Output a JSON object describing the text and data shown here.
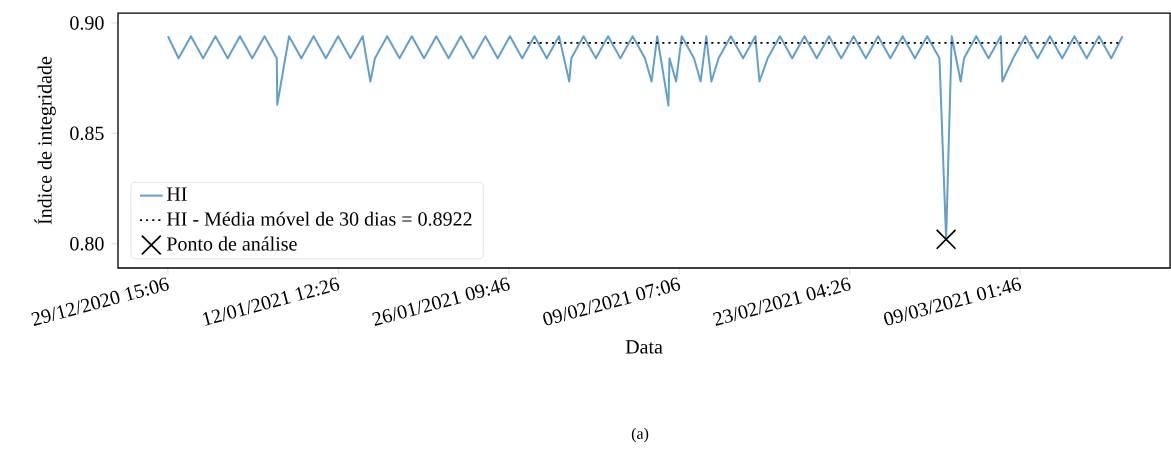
{
  "chart_data": {
    "type": "line",
    "xlabel": "Data",
    "ylabel": "Índice de integridade",
    "annotations": [
      "(a)"
    ],
    "xlim": [
      "2020-12-25T13:30",
      "2021-03-21T07:00"
    ],
    "xticks": [
      {
        "value": "2020-12-29T15:06",
        "label": "29/12/2020 15:06"
      },
      {
        "value": "2021-01-12T12:26",
        "label": "12/01/2021 12:26"
      },
      {
        "value": "2021-01-26T09:46",
        "label": "26/01/2021 09:46"
      },
      {
        "value": "2021-02-09T07:06",
        "label": "09/02/2021 07:06"
      },
      {
        "value": "2021-02-23T04:26",
        "label": "23/02/2021 04:26"
      },
      {
        "value": "2021-03-09T01:46",
        "label": "09/03/2021 01:46"
      }
    ],
    "ylim": [
      0.789,
      0.9045
    ],
    "yticks": [
      {
        "value": 0.8,
        "label": "0.80"
      },
      {
        "value": 0.85,
        "label": "0.85"
      },
      {
        "value": 0.9,
        "label": "0.90"
      }
    ],
    "legend": "bottom left",
    "grid": false,
    "series": [
      {
        "name": "HI",
        "color": "#62a0ca",
        "line_style": "solid",
        "x": [
          "2020-12-29T15:06",
          "2020-12-30T12:00",
          "2020-12-31T12:00",
          "2021-01-01T12:00",
          "2021-01-02T12:00",
          "2021-01-03T12:00",
          "2021-01-04T12:00",
          "2021-01-05T12:00",
          "2021-01-06T12:00",
          "2021-01-07T12:00",
          "2021-01-07T13:00",
          "2021-01-08T12:00",
          "2021-01-09T12:00",
          "2021-01-10T12:00",
          "2021-01-11T12:00",
          "2021-01-12T12:00",
          "2021-01-13T12:00",
          "2021-01-14T12:00",
          "2021-01-15T03:00",
          "2021-01-15T12:00",
          "2021-01-16T12:00",
          "2021-01-17T12:00",
          "2021-01-18T12:00",
          "2021-01-19T12:00",
          "2021-01-20T12:00",
          "2021-01-21T12:00",
          "2021-01-22T12:00",
          "2021-01-23T12:00",
          "2021-01-24T12:00",
          "2021-01-25T12:00",
          "2021-01-26T12:00",
          "2021-01-27T12:00",
          "2021-01-28T12:00",
          "2021-01-29T12:00",
          "2021-01-30T12:00",
          "2021-01-31T08:00",
          "2021-01-31T12:00",
          "2021-02-01T12:00",
          "2021-02-02T12:00",
          "2021-02-03T12:00",
          "2021-02-04T12:00",
          "2021-02-05T12:00",
          "2021-02-06T12:00",
          "2021-02-07T01:00",
          "2021-02-07T12:00",
          "2021-02-08T10:00",
          "2021-02-08T12:00",
          "2021-02-09T01:00",
          "2021-02-09T12:00",
          "2021-02-10T12:00",
          "2021-02-11T01:00",
          "2021-02-11T12:00",
          "2021-02-11T22:00",
          "2021-02-12T12:00",
          "2021-02-13T12:00",
          "2021-02-14T12:00",
          "2021-02-15T12:00",
          "2021-02-15T20:00",
          "2021-02-16T12:00",
          "2021-02-17T12:00",
          "2021-02-18T12:00",
          "2021-02-19T12:00",
          "2021-02-20T12:00",
          "2021-02-21T12:00",
          "2021-02-22T12:00",
          "2021-02-23T12:00",
          "2021-02-24T12:00",
          "2021-02-25T12:00",
          "2021-02-26T12:00",
          "2021-02-27T12:00",
          "2021-02-28T12:00",
          "2021-03-01T12:00",
          "2021-03-02T12:00",
          "2021-03-03T01:00",
          "2021-03-03T12:00",
          "2021-03-04T05:30",
          "2021-03-04T12:00",
          "2021-03-05T12:00",
          "2021-03-06T12:00",
          "2021-03-07T12:00",
          "2021-03-07T15:00",
          "2021-03-08T12:00",
          "2021-03-09T12:00",
          "2021-03-10T12:00",
          "2021-03-11T12:00",
          "2021-03-12T12:00",
          "2021-03-13T12:00",
          "2021-03-14T12:00",
          "2021-03-15T12:00",
          "2021-03-16T12:00",
          "2021-03-17T10:00"
        ],
        "values": [
          0.894,
          0.884,
          0.894,
          0.884,
          0.894,
          0.884,
          0.894,
          0.884,
          0.894,
          0.884,
          0.863,
          0.894,
          0.884,
          0.894,
          0.884,
          0.894,
          0.884,
          0.894,
          0.8735,
          0.884,
          0.894,
          0.884,
          0.894,
          0.884,
          0.894,
          0.884,
          0.894,
          0.884,
          0.894,
          0.884,
          0.894,
          0.884,
          0.894,
          0.884,
          0.894,
          0.8735,
          0.884,
          0.894,
          0.884,
          0.894,
          0.884,
          0.894,
          0.884,
          0.8735,
          0.894,
          0.8626,
          0.884,
          0.8735,
          0.894,
          0.884,
          0.8735,
          0.894,
          0.8735,
          0.884,
          0.894,
          0.884,
          0.894,
          0.8735,
          0.884,
          0.894,
          0.884,
          0.894,
          0.884,
          0.894,
          0.884,
          0.894,
          0.884,
          0.894,
          0.884,
          0.894,
          0.884,
          0.894,
          0.884,
          0.802,
          0.894,
          0.8735,
          0.884,
          0.894,
          0.884,
          0.894,
          0.8735,
          0.884,
          0.894,
          0.884,
          0.894,
          0.884,
          0.894,
          0.884,
          0.894,
          0.884,
          0.894
        ]
      },
      {
        "name": "HI - Média móvel de 30 dias = 0.8922",
        "color": "#000000",
        "line_style": "dotted",
        "x": [
          "2021-01-27T22:00",
          "2021-03-17T05:30"
        ],
        "values": [
          0.891,
          0.891
        ]
      },
      {
        "name": "Ponto de análise",
        "type": "scatter",
        "marker": "cross",
        "color": "#000000",
        "x": [
          "2021-03-03T01:00"
        ],
        "values": [
          0.802
        ]
      }
    ]
  }
}
